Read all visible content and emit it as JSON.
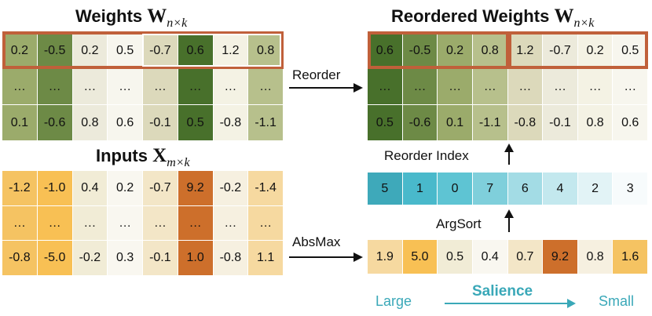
{
  "weights": {
    "title": "Weights",
    "matrix": "W",
    "subscript": "n×k",
    "rows": [
      [
        "0.2",
        "-0.5",
        "0.2",
        "0.5",
        "-0.7",
        "0.6",
        "1.2",
        "0.8"
      ],
      [
        "…",
        "…",
        "…",
        "…",
        "…",
        "…",
        "…",
        "…"
      ],
      [
        "0.1",
        "-0.6",
        "0.8",
        "0.6",
        "-0.1",
        "0.5",
        "-0.8",
        "-1.1"
      ]
    ],
    "colors": [
      "#9bab6b",
      "#6d8a46",
      "#eceadb",
      "#f7f6ee",
      "#dcd9bb",
      "#48702b",
      "#f4f2e4",
      "#b7c08c"
    ]
  },
  "reordered": {
    "title": "Reordered Weights",
    "matrix": "W",
    "subscript": "n×k",
    "rows": [
      [
        "0.6",
        "-0.5",
        "0.2",
        "0.8",
        "1.2",
        "-0.7",
        "0.2",
        "0.5"
      ],
      [
        "…",
        "…",
        "…",
        "…",
        "…",
        "…",
        "…",
        "…"
      ],
      [
        "0.5",
        "-0.6",
        "0.1",
        "-1.1",
        "-0.8",
        "-0.1",
        "0.8",
        "0.6"
      ]
    ],
    "colors": [
      "#48702b",
      "#6d8a46",
      "#9bab6b",
      "#b7c08c",
      "#dcd9bb",
      "#eceadb",
      "#f4f2e4",
      "#f7f6ee"
    ]
  },
  "inputs": {
    "title": "Inputs",
    "matrix": "X",
    "subscript": "m×k",
    "rows": [
      [
        "-1.2",
        "-1.0",
        "0.4",
        "0.2",
        "-0.7",
        "9.2",
        "-0.2",
        "-1.4"
      ],
      [
        "…",
        "…",
        "…",
        "…",
        "…",
        "…",
        "…",
        "…"
      ],
      [
        "-0.8",
        "-5.0",
        "-0.2",
        "0.3",
        "-0.1",
        "1.0",
        "-0.8",
        "1.1"
      ]
    ],
    "colors": [
      "#f5c362",
      "#f8c054",
      "#f1ecd6",
      "#f9f7f0",
      "#f3e6c7",
      "#cd6f2b",
      "#f6f0e0",
      "#f6d9a0"
    ]
  },
  "absmax": {
    "values": [
      "1.9",
      "5.0",
      "0.5",
      "0.4",
      "0.7",
      "9.2",
      "0.8",
      "1.6"
    ],
    "colors": [
      "#f6d9a0",
      "#f8c054",
      "#f1ecd6",
      "#f9f7f0",
      "#f3e6c7",
      "#cd6f2b",
      "#f6f0e0",
      "#f5c362"
    ]
  },
  "index": {
    "values": [
      "5",
      "1",
      "0",
      "7",
      "6",
      "4",
      "2",
      "3"
    ],
    "colors": [
      "#3ea9ba",
      "#49b9cb",
      "#5ec4d3",
      "#7fcfdb",
      "#a3dce5",
      "#c3e8ee",
      "#e2f3f6",
      "#f7fbfc"
    ]
  },
  "labels": {
    "reorder": "Reorder",
    "absmax": "AbsMax",
    "argsort": "ArgSort",
    "reorder_index": "Reorder Index"
  },
  "legend": {
    "large": "Large",
    "salience": "Salience",
    "small": "Small",
    "color": "#3aa8b8"
  }
}
